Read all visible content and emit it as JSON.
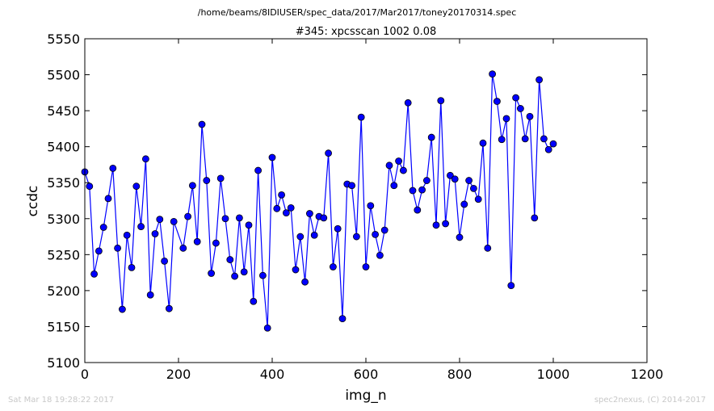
{
  "suptitle": "/home/beams/8IDIUSER/spec_data/2017/Mar2017/toney20170314.spec",
  "footer": {
    "timestamp": "Sat Mar 18 19:28:22 2017",
    "credit": "spec2nexus, (C) 2014-2017"
  },
  "colors": {
    "line": "#0000ff",
    "marker": "#0000ff",
    "marker_edge": "#000000"
  },
  "chart_data": {
    "type": "line",
    "title": "#345: xpcsscan 1002 0.08",
    "xlabel": "img_n",
    "ylabel": "ccdc",
    "xlim": [
      0,
      1200
    ],
    "ylim": [
      5100,
      5550
    ],
    "xticks": [
      0,
      200,
      400,
      600,
      800,
      1000,
      1200
    ],
    "yticks": [
      5100,
      5150,
      5200,
      5250,
      5300,
      5350,
      5400,
      5450,
      5500,
      5550
    ],
    "grid": false,
    "series": [
      {
        "x": [
          0,
          10,
          20,
          30,
          40,
          50,
          60,
          70,
          80,
          90,
          100,
          110,
          120,
          130,
          140,
          150,
          160,
          170,
          180,
          190,
          210,
          220,
          230,
          240,
          250,
          260,
          270,
          280,
          290,
          300,
          310,
          320,
          330,
          340,
          350,
          360,
          370,
          380,
          390,
          400,
          410,
          420,
          430,
          440,
          450,
          460,
          470,
          480,
          490,
          500,
          510,
          520,
          530,
          540,
          550,
          560,
          570,
          580,
          590,
          600,
          610,
          620,
          630,
          640,
          650,
          660,
          670,
          680,
          690,
          700,
          710,
          720,
          730,
          740,
          750,
          760,
          770,
          780,
          790,
          800,
          810,
          820,
          830,
          840,
          850,
          860,
          870,
          880,
          890,
          900,
          910,
          920,
          930,
          940,
          950,
          960,
          970,
          980,
          990,
          1000
        ],
        "y": [
          5365,
          5345,
          5223,
          5255,
          5288,
          5328,
          5370,
          5259,
          5174,
          5277,
          5232,
          5345,
          5289,
          5383,
          5194,
          5279,
          5299,
          5241,
          5175,
          5296,
          5259,
          5303,
          5346,
          5268,
          5431,
          5353,
          5224,
          5266,
          5356,
          5300,
          5243,
          5220,
          5301,
          5226,
          5291,
          5185,
          5367,
          5221,
          5148,
          5385,
          5314,
          5333,
          5308,
          5315,
          5229,
          5275,
          5212,
          5307,
          5277,
          5303,
          5301,
          5391,
          5233,
          5286,
          5161,
          5348,
          5346,
          5275,
          5441,
          5233,
          5318,
          5278,
          5249,
          5284,
          5374,
          5346,
          5380,
          5367,
          5461,
          5339,
          5312,
          5340,
          5353,
          5413,
          5291,
          5464,
          5293,
          5360,
          5355,
          5274,
          5320,
          5353,
          5342,
          5327,
          5405,
          5259,
          5501,
          5463,
          5410,
          5439,
          5207,
          5468,
          5453,
          5411,
          5442,
          5301,
          5493,
          5411,
          5396,
          5404
        ]
      }
    ]
  }
}
